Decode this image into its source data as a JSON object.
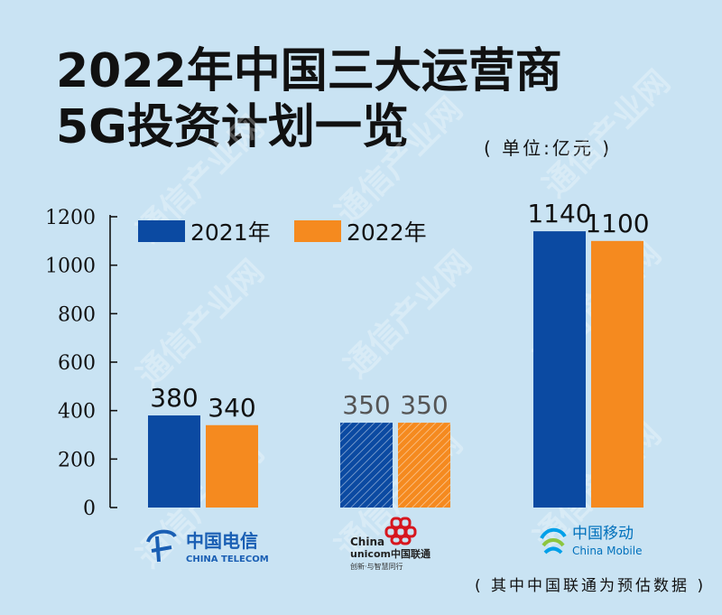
{
  "title_line1": "2022年中国三大运营商",
  "title_line2": "5G投资计划一览",
  "unit_note": "( 单位:亿元 )",
  "footnote": "( 其中中国联通为预估数据 )",
  "watermark_text": "通信产业网",
  "colors": {
    "background": "#c9e3f3",
    "series_2021": "#0b4aa2",
    "series_2022": "#f58a1f",
    "axis": "#111111"
  },
  "logos": {
    "telecom": {
      "name": "中国电信",
      "sub": "CHINA TELECOM",
      "icon": "china-telecom-logo"
    },
    "unicom": {
      "name1": "China",
      "name2": "unicom中国联通",
      "sub": "创新·与智慧同行",
      "icon": "china-unicom-logo"
    },
    "mobile": {
      "name": "中国移动",
      "sub": "China Mobile",
      "icon": "china-mobile-logo"
    }
  },
  "chart_data": {
    "type": "bar",
    "categories": [
      "中国电信",
      "中国联通",
      "中国移动"
    ],
    "series": [
      {
        "name": "2021年",
        "values": [
          380,
          350,
          1140
        ]
      },
      {
        "name": "2022年",
        "values": [
          340,
          350,
          1100
        ]
      }
    ],
    "estimated_category": "中国联通",
    "y_ticks": [
      0,
      200,
      400,
      600,
      800,
      1000,
      1200
    ],
    "ylim": [
      0,
      1200
    ],
    "legend_position": "top-left",
    "grid": false
  }
}
